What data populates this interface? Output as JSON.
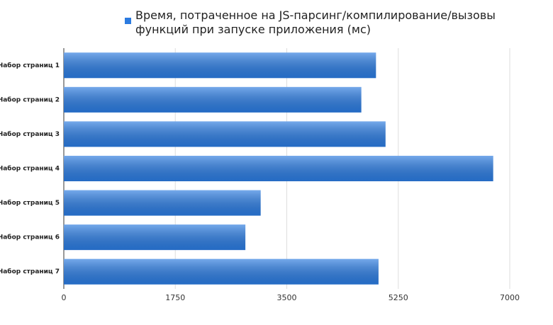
{
  "chart_data": {
    "type": "bar",
    "orientation": "horizontal",
    "categories": [
      "Набор страниц 1",
      "Набор страниц 2",
      "Набор страниц 3",
      "Набор страниц 4",
      "Набор страниц 5",
      "Набор страниц 6",
      "Набор страниц 7"
    ],
    "series": [
      {
        "name": "Время, потраченное на JS-парсинг/компилирование/вызовы функций при запуске приложения (мс)",
        "color": "#2b7be0",
        "values": [
          4900,
          4670,
          5050,
          6740,
          3090,
          2850,
          4940
        ]
      }
    ],
    "xlim": [
      0,
      7000
    ],
    "xticks": [
      0,
      1750,
      3500,
      5250,
      7000
    ],
    "grid": true,
    "legend": "top"
  }
}
